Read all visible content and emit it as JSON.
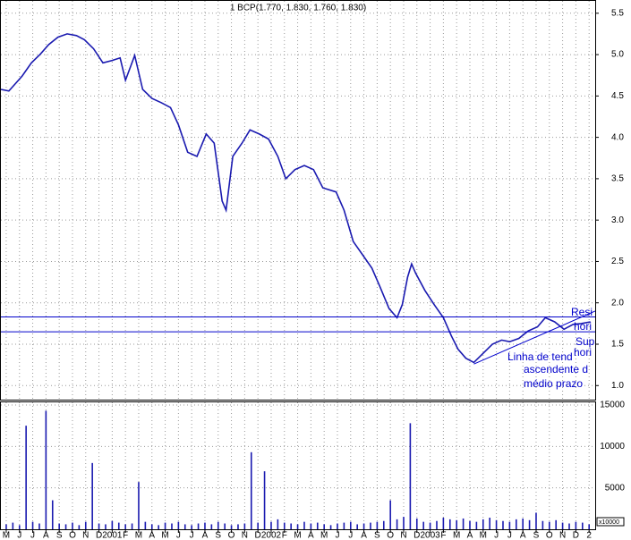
{
  "chart_data": [
    {
      "type": "line",
      "title": "1 BCP(1.770, 1.830, 1.760, 1.830)",
      "x": [
        -0.4,
        0.2,
        1.2,
        1.9,
        2.6,
        3.2,
        3.9,
        4.6,
        5.3,
        5.9,
        6.6,
        7.3,
        8.0,
        8.6,
        9.0,
        9.7,
        10.3,
        11.0,
        11.7,
        12.4,
        13.0,
        13.7,
        14.4,
        15.1,
        15.7,
        16.3,
        16.6,
        17.1,
        17.8,
        18.4,
        19.1,
        19.8,
        20.5,
        21.1,
        21.8,
        22.5,
        23.2,
        23.9,
        24.9,
        25.5,
        26.2,
        26.9,
        27.6,
        28.2,
        28.9,
        29.5,
        29.9,
        30.3,
        30.6,
        30.9,
        31.6,
        32.3,
        33.0,
        33.6,
        34.1,
        34.7,
        35.3,
        36.0,
        36.7,
        37.4,
        38.0,
        38.7,
        39.4,
        40.1,
        40.7,
        41.4,
        42.1,
        42.8,
        43.4,
        44.1
      ],
      "values": [
        4.58,
        4.56,
        4.74,
        4.9,
        5.01,
        5.12,
        5.21,
        5.25,
        5.23,
        5.18,
        5.07,
        4.9,
        4.93,
        4.96,
        4.69,
        4.99,
        4.58,
        4.47,
        4.42,
        4.36,
        4.15,
        3.82,
        3.77,
        4.04,
        3.93,
        3.23,
        3.12,
        3.77,
        3.93,
        4.09,
        4.04,
        3.98,
        3.77,
        3.5,
        3.61,
        3.66,
        3.61,
        3.39,
        3.34,
        3.12,
        2.74,
        2.58,
        2.42,
        2.2,
        1.93,
        1.82,
        1.98,
        2.31,
        2.47,
        2.36,
        2.15,
        1.98,
        1.82,
        1.6,
        1.44,
        1.33,
        1.28,
        1.39,
        1.5,
        1.55,
        1.53,
        1.57,
        1.66,
        1.71,
        1.82,
        1.77,
        1.68,
        1.74,
        1.75,
        1.77
      ],
      "color": "#1a1ab0",
      "xlim": [
        -0.47,
        44.46
      ],
      "ylim": [
        0.83,
        5.66
      ],
      "yticks": [
        {
          "value": 1,
          "label": "1.0"
        },
        1.5,
        {
          "value": 2,
          "label": "2.0"
        },
        2.5,
        {
          "value": 3,
          "label": "3.0"
        },
        3.5,
        {
          "value": 4,
          "label": "4.0"
        },
        4.5,
        {
          "value": 5,
          "label": "5.0"
        },
        5.5
      ],
      "grid": true,
      "hlines": [
        1.83,
        1.65
      ],
      "trendline": {
        "x": [
          35.3,
          44.46
        ],
        "values": [
          1.26,
          1.9
        ]
      },
      "annotations": [
        "Resi",
        "hori",
        "Sup",
        "hori",
        "Linha de tend",
        "ascendente d",
        "médio prazo"
      ]
    },
    {
      "type": "bar",
      "x": [
        0,
        0.5,
        1,
        1.5,
        2,
        2.5,
        3,
        3.5,
        4,
        4.5,
        5,
        5.5,
        6,
        6.5,
        7,
        7.5,
        8,
        8.5,
        9,
        9.5,
        10,
        10.5,
        11,
        11.5,
        12,
        12.5,
        13,
        13.5,
        14,
        14.5,
        15,
        15.5,
        16,
        16.5,
        17,
        17.5,
        18,
        18.5,
        19,
        19.5,
        20,
        20.5,
        21,
        21.5,
        22,
        22.5,
        23,
        23.5,
        24,
        24.5,
        25,
        25.5,
        26,
        26.5,
        27,
        27.5,
        28,
        28.5,
        29,
        29.5,
        30,
        30.5,
        31,
        31.5,
        32,
        32.5,
        33,
        33.5,
        34,
        34.5,
        35,
        35.5,
        36,
        36.5,
        37,
        37.5,
        38,
        38.5,
        39,
        39.5,
        40,
        40.5,
        41,
        41.5,
        42,
        42.5,
        43,
        43.5,
        44
      ],
      "values": [
        600,
        800,
        500,
        12500,
        900,
        700,
        14300,
        3500,
        700,
        600,
        800,
        500,
        900,
        8000,
        700,
        600,
        1000,
        800,
        600,
        700,
        5700,
        900,
        600,
        500,
        800,
        700,
        900,
        600,
        500,
        700,
        800,
        600,
        900,
        700,
        500,
        600,
        700,
        9300,
        800,
        7000,
        900,
        1200,
        800,
        700,
        600,
        900,
        700,
        800,
        600,
        500,
        700,
        800,
        900,
        600,
        700,
        800,
        900,
        1000,
        3500,
        1200,
        1500,
        12800,
        1300,
        900,
        800,
        1000,
        1400,
        1200,
        1100,
        1300,
        1000,
        900,
        1200,
        1400,
        1100,
        1000,
        900,
        1200,
        1300,
        1100,
        2000,
        1000,
        900,
        1100,
        800,
        700,
        900,
        800,
        600
      ],
      "color": "#1a1ab0",
      "xlim": [
        -0.47,
        44.46
      ],
      "ylim": [
        0,
        15430
      ],
      "yticks": [
        5000,
        10000,
        15000
      ],
      "axis_note": "x10000",
      "xticks": [
        {
          "value": 0,
          "label": "M"
        },
        {
          "value": 1,
          "label": "J"
        },
        {
          "value": 2,
          "label": "J"
        },
        {
          "value": 3,
          "label": "A"
        },
        {
          "value": 4,
          "label": "S"
        },
        {
          "value": 5,
          "label": "O"
        },
        {
          "value": 6,
          "label": "N"
        },
        {
          "value": 7,
          "label": "D"
        },
        {
          "value": 8,
          "label": "2001"
        },
        {
          "value": 9,
          "label": "F"
        },
        {
          "value": 10,
          "label": "M"
        },
        {
          "value": 11,
          "label": "A"
        },
        {
          "value": 12,
          "label": "M"
        },
        {
          "value": 13,
          "label": "J"
        },
        {
          "value": 14,
          "label": "J"
        },
        {
          "value": 15,
          "label": "A"
        },
        {
          "value": 16,
          "label": "S"
        },
        {
          "value": 17,
          "label": "O"
        },
        {
          "value": 18,
          "label": "N"
        },
        {
          "value": 19,
          "label": "D"
        },
        {
          "value": 20,
          "label": "2002"
        },
        {
          "value": 21,
          "label": "F"
        },
        {
          "value": 22,
          "label": "M"
        },
        {
          "value": 23,
          "label": "A"
        },
        {
          "value": 24,
          "label": "M"
        },
        {
          "value": 25,
          "label": "J"
        },
        {
          "value": 26,
          "label": "J"
        },
        {
          "value": 27,
          "label": "A"
        },
        {
          "value": 28,
          "label": "S"
        },
        {
          "value": 29,
          "label": "O"
        },
        {
          "value": 30,
          "label": "N"
        },
        {
          "value": 31,
          "label": "D"
        },
        {
          "value": 32,
          "label": "2003"
        },
        {
          "value": 33,
          "label": "F"
        },
        {
          "value": 34,
          "label": "M"
        },
        {
          "value": 35,
          "label": "A"
        },
        {
          "value": 36,
          "label": "M"
        },
        {
          "value": 37,
          "label": "J"
        },
        {
          "value": 38,
          "label": "J"
        },
        {
          "value": 39,
          "label": "A"
        },
        {
          "value": 40,
          "label": "S"
        },
        {
          "value": 41,
          "label": "O"
        },
        {
          "value": 42,
          "label": "N"
        },
        {
          "value": 43,
          "label": "D"
        },
        {
          "value": 44,
          "label": "2"
        }
      ]
    }
  ]
}
